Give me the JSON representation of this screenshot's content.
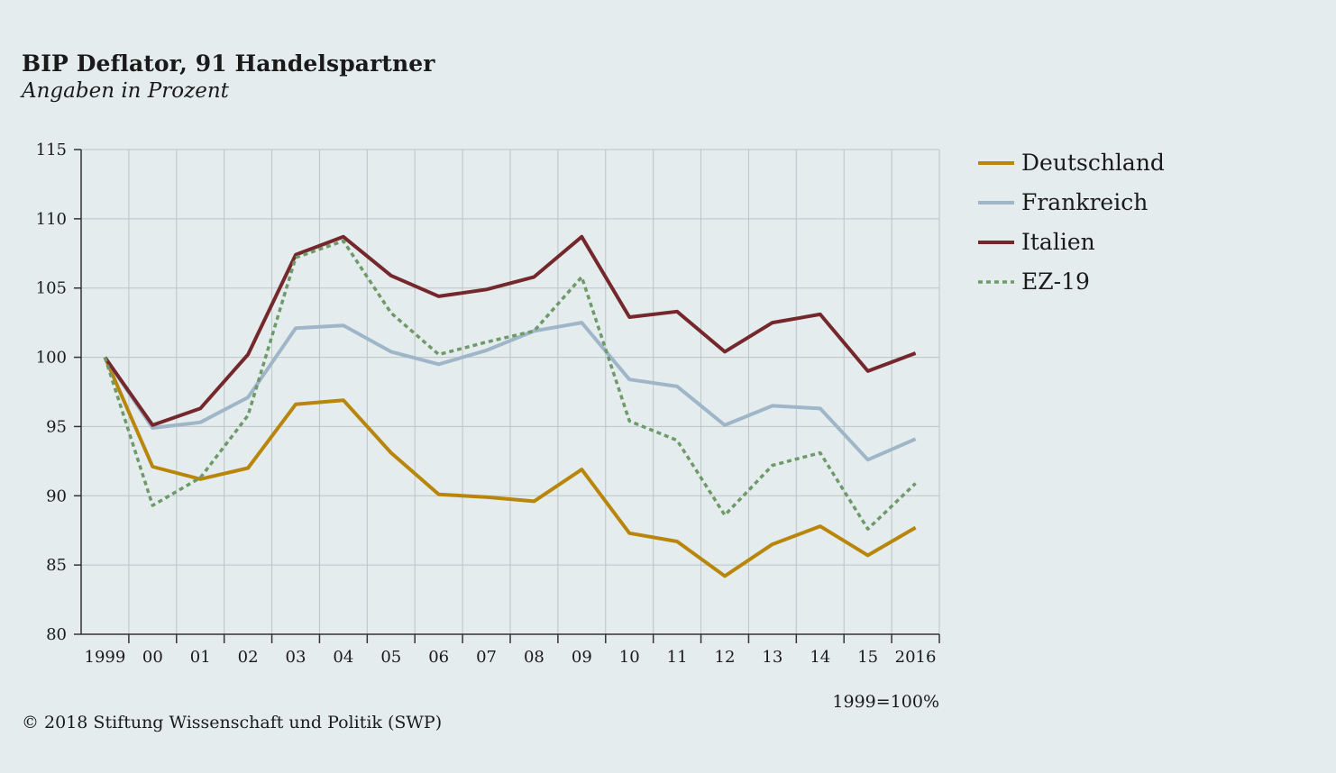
{
  "header": {
    "title": "BIP Deflator, 91 Handelspartner",
    "subtitle": "Angaben in Prozent"
  },
  "footer": {
    "note": "1999=100%",
    "copyright": "© 2018 Stiftung Wissenschaft und Politik (SWP)"
  },
  "chart_data": {
    "type": "line",
    "title": "BIP Deflator, 91 Handelspartner",
    "subtitle": "Angaben in Prozent",
    "x": [
      "1999",
      "00",
      "01",
      "02",
      "03",
      "04",
      "05",
      "06",
      "07",
      "08",
      "09",
      "10",
      "11",
      "12",
      "13",
      "14",
      "15",
      "2016"
    ],
    "ylim": [
      80,
      115
    ],
    "yticks": [
      80,
      85,
      90,
      95,
      100,
      105,
      110,
      115
    ],
    "grid": true,
    "legend_position": "right",
    "series": [
      {
        "name": "Deutschland",
        "color": "#b8860b",
        "dash": "solid",
        "values": [
          100,
          92.1,
          91.2,
          92.0,
          96.6,
          96.9,
          93.1,
          90.1,
          89.9,
          89.6,
          91.9,
          87.3,
          86.7,
          84.2,
          86.5,
          87.8,
          85.7,
          87.7
        ]
      },
      {
        "name": "Frankreich",
        "color": "#9fb6c8",
        "dash": "solid",
        "values": [
          100,
          94.9,
          95.3,
          97.1,
          102.1,
          102.3,
          100.4,
          99.5,
          100.5,
          101.9,
          102.5,
          98.4,
          97.9,
          95.1,
          96.5,
          96.3,
          92.6,
          94.1
        ]
      },
      {
        "name": "Italien",
        "color": "#74282c",
        "dash": "solid",
        "values": [
          100,
          95.1,
          96.3,
          100.2,
          107.4,
          108.7,
          105.9,
          104.4,
          104.9,
          105.8,
          108.7,
          102.9,
          103.3,
          100.4,
          102.5,
          103.1,
          99.0,
          100.3
        ]
      },
      {
        "name": "EZ-19",
        "color": "#6e9a6a",
        "dash": "dotted",
        "values": [
          100,
          89.3,
          91.3,
          95.8,
          107.2,
          108.4,
          103.2,
          100.2,
          101.1,
          101.9,
          105.8,
          95.4,
          94.0,
          88.6,
          92.2,
          93.1,
          87.6,
          90.9
        ]
      }
    ]
  }
}
